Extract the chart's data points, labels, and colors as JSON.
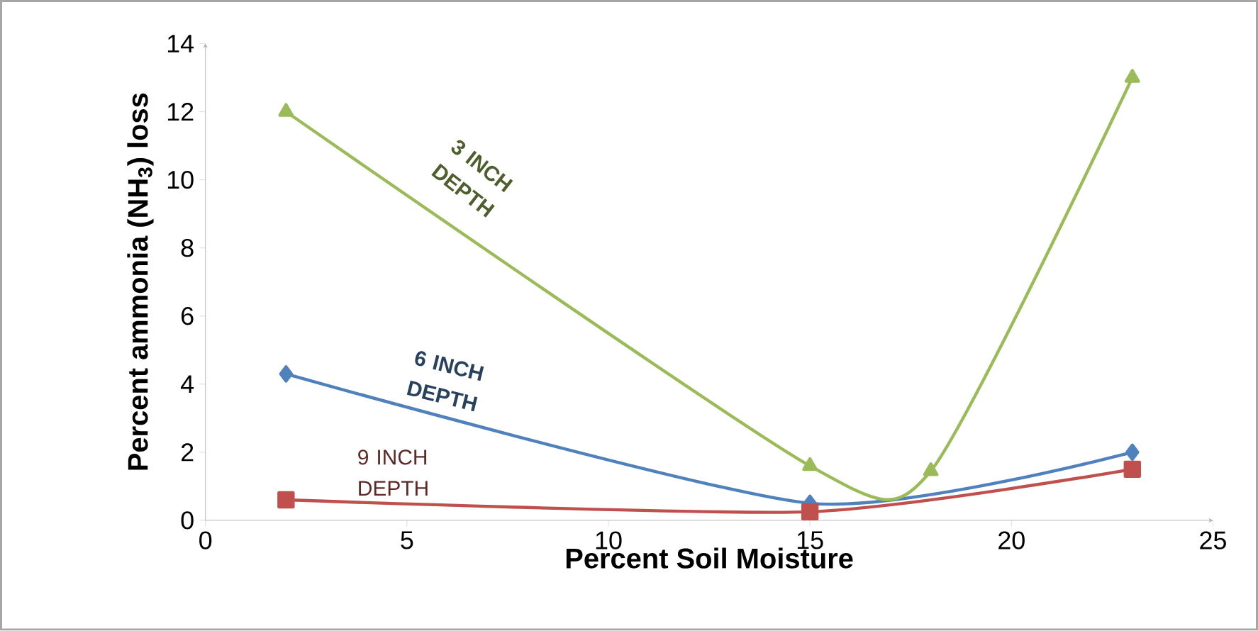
{
  "chart_data": {
    "type": "line",
    "xlabel": "Percent Soil Moisture",
    "ylabel": "Percent ammonia (NH$_{3}$) loss",
    "xlim": [
      0,
      25
    ],
    "xticks": [
      0,
      5,
      10,
      15,
      20,
      25
    ],
    "ylim": [
      0,
      14
    ],
    "yticks": [
      0,
      2,
      4,
      6,
      8,
      10,
      12,
      14
    ],
    "grid": false,
    "series": [
      {
        "name": "6 INCH DEPTH",
        "color": "#4f81bd",
        "marker": "diamond",
        "x": [
          2,
          15,
          23
        ],
        "values": [
          4.3,
          0.5,
          2.0
        ]
      },
      {
        "name": "9 INCH DEPTH",
        "color": "#c0504d",
        "marker": "square",
        "x": [
          2,
          15,
          23
        ],
        "values": [
          0.6,
          0.25,
          1.5
        ]
      },
      {
        "name": "3 INCH DEPTH",
        "color": "#9bbb59",
        "marker": "triangle",
        "x": [
          2,
          15,
          18,
          23
        ],
        "values": [
          12,
          1.6,
          1.45,
          13
        ]
      }
    ]
  }
}
